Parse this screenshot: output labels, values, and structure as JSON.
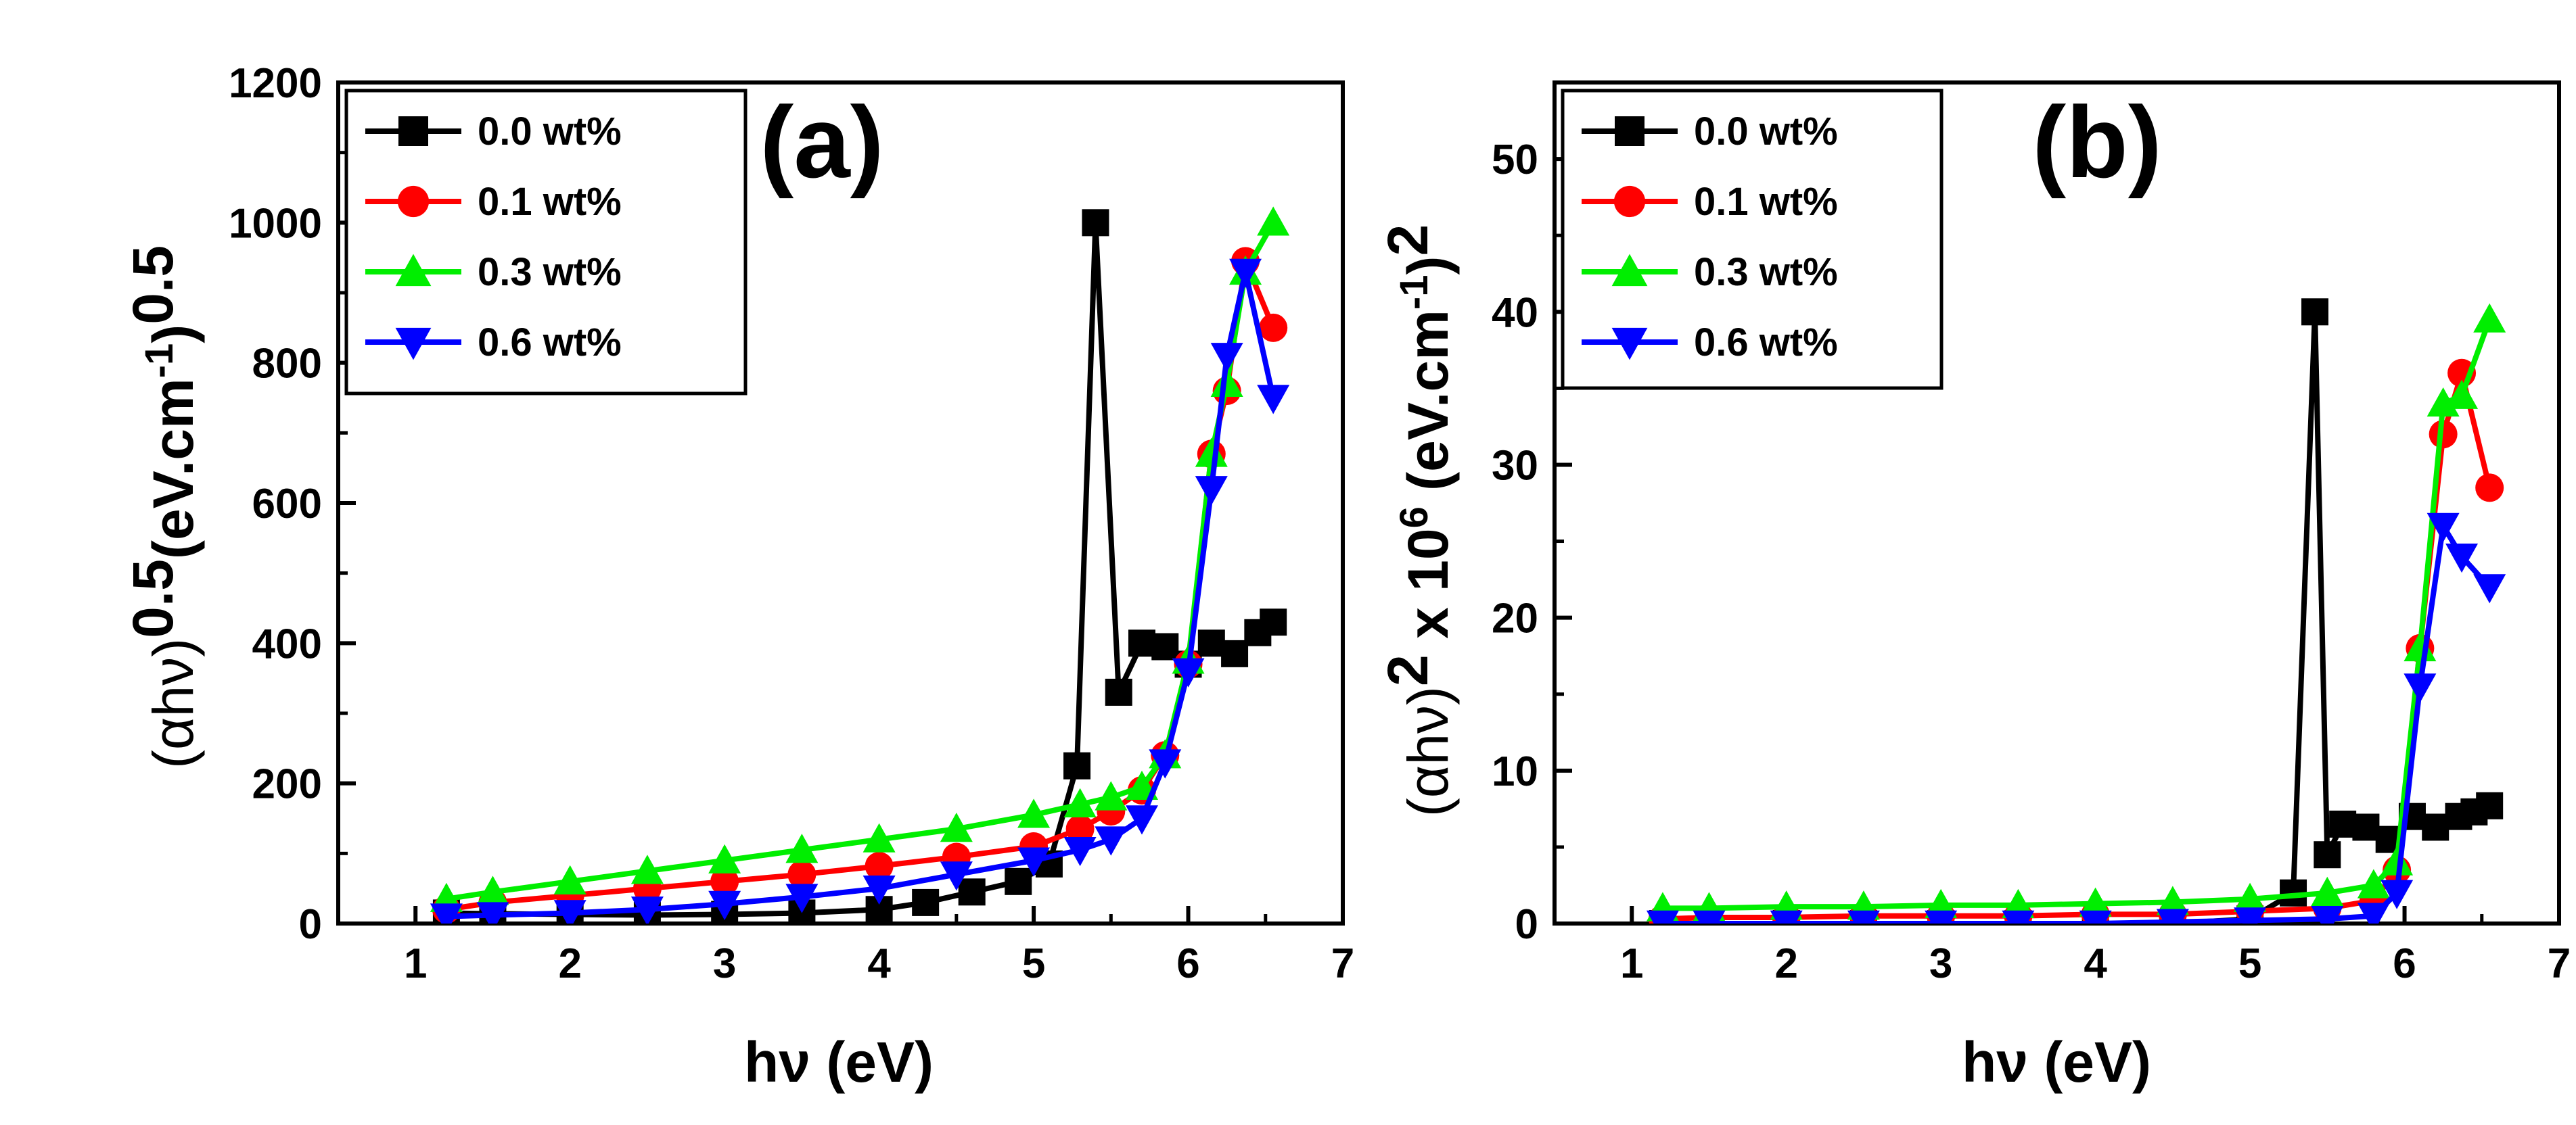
{
  "colors": {
    "series_0_0": "#000000",
    "series_0_1": "#ff0000",
    "series_0_3": "#00ee00",
    "series_0_6": "#0000ff"
  },
  "chart_data": [
    {
      "panel": "(a)",
      "type": "line",
      "xlabel": "hν (eV)",
      "ylabel_parts": {
        "base": "(αhν)",
        "exp1": "0.5",
        "unit": "(eV.cm",
        "exp2": "-1",
        "close": ")",
        "exp3": "0.5"
      },
      "xlim": [
        0.5,
        7
      ],
      "ylim": [
        0,
        1200
      ],
      "xticks": [
        1,
        2,
        3,
        4,
        5,
        6,
        7
      ],
      "yticks": [
        0,
        200,
        400,
        600,
        800,
        1000,
        1200
      ],
      "legend_position": "top-left",
      "series": [
        {
          "name": "0.0 wt%",
          "color": "#000000",
          "marker": "square",
          "x": [
            1.2,
            1.5,
            2.0,
            2.5,
            3.0,
            3.5,
            4.0,
            4.3,
            4.6,
            4.9,
            5.1,
            5.28,
            5.4,
            5.55,
            5.7,
            5.85,
            6.0,
            6.15,
            6.3,
            6.45,
            6.55
          ],
          "y": [
            15,
            14,
            13,
            12,
            13,
            15,
            20,
            30,
            45,
            60,
            85,
            225,
            1000,
            330,
            400,
            395,
            370,
            400,
            385,
            415,
            430
          ]
        },
        {
          "name": "0.1 wt%",
          "color": "#ff0000",
          "marker": "circle",
          "x": [
            1.2,
            1.5,
            2.0,
            2.5,
            3.0,
            3.5,
            4.0,
            4.5,
            5.0,
            5.3,
            5.5,
            5.7,
            5.85,
            6.0,
            6.15,
            6.25,
            6.37,
            6.55
          ],
          "y": [
            20,
            30,
            40,
            50,
            60,
            70,
            82,
            95,
            110,
            135,
            160,
            190,
            240,
            370,
            670,
            760,
            945,
            850
          ]
        },
        {
          "name": "0.3 wt%",
          "color": "#00ee00",
          "marker": "triangle-up",
          "x": [
            1.2,
            1.5,
            2.0,
            2.5,
            3.0,
            3.5,
            4.0,
            4.5,
            5.0,
            5.3,
            5.5,
            5.7,
            5.85,
            6.0,
            6.15,
            6.25,
            6.37,
            6.55
          ],
          "y": [
            35,
            45,
            60,
            75,
            90,
            105,
            120,
            135,
            155,
            170,
            180,
            195,
            240,
            375,
            670,
            770,
            930,
            1000
          ]
        },
        {
          "name": "0.6 wt%",
          "color": "#0000ff",
          "marker": "triangle-down",
          "x": [
            1.2,
            1.5,
            2.0,
            2.5,
            3.0,
            3.5,
            4.0,
            4.5,
            5.0,
            5.3,
            5.5,
            5.7,
            5.85,
            6.0,
            6.15,
            6.25,
            6.37,
            6.55
          ],
          "y": [
            10,
            12,
            15,
            20,
            28,
            38,
            50,
            70,
            90,
            105,
            120,
            150,
            230,
            360,
            620,
            810,
            930,
            750
          ]
        }
      ]
    },
    {
      "panel": "(b)",
      "type": "line",
      "xlabel": "hν (eV)",
      "ylabel_parts": {
        "base": "(αhν)",
        "exp1": "2",
        "mid": " x 10",
        "exp_mid": "6",
        "unit": " (eV.cm",
        "exp2": "-1",
        "close": ")",
        "exp3": "2"
      },
      "xlim": [
        0.5,
        7
      ],
      "ylim": [
        0,
        55
      ],
      "xticks": [
        1,
        2,
        3,
        4,
        5,
        6,
        7
      ],
      "yticks": [
        0,
        10,
        20,
        30,
        40,
        50
      ],
      "legend_position": "top-left",
      "series": [
        {
          "name": "0.0 wt%",
          "color": "#000000",
          "marker": "square",
          "x": [
            1.2,
            1.5,
            2.0,
            2.5,
            3.0,
            3.5,
            4.0,
            4.5,
            5.0,
            5.28,
            5.42,
            5.5,
            5.6,
            5.75,
            5.9,
            6.05,
            6.2,
            6.35,
            6.45,
            6.55
          ],
          "y": [
            0,
            0,
            0,
            0,
            0,
            0,
            0,
            0,
            0.3,
            2.0,
            40,
            4.5,
            6.5,
            6.3,
            5.5,
            7.0,
            6.3,
            7.0,
            7.3,
            7.7
          ]
        },
        {
          "name": "0.1 wt%",
          "color": "#ff0000",
          "marker": "circle",
          "x": [
            1.2,
            1.5,
            2.0,
            2.5,
            3.0,
            3.5,
            4.0,
            4.5,
            5.0,
            5.5,
            5.8,
            5.95,
            6.1,
            6.25,
            6.37,
            6.55
          ],
          "y": [
            0.3,
            0.4,
            0.4,
            0.5,
            0.5,
            0.5,
            0.6,
            0.6,
            0.8,
            1.0,
            1.5,
            3.5,
            18,
            32,
            36,
            28.5
          ]
        },
        {
          "name": "0.3 wt%",
          "color": "#00ee00",
          "marker": "triangle-up",
          "x": [
            1.2,
            1.5,
            2.0,
            2.5,
            3.0,
            3.5,
            4.0,
            4.5,
            5.0,
            5.5,
            5.8,
            5.95,
            6.1,
            6.25,
            6.37,
            6.55
          ],
          "y": [
            1.0,
            1.0,
            1.1,
            1.1,
            1.2,
            1.2,
            1.3,
            1.4,
            1.6,
            2.0,
            2.5,
            4.0,
            18,
            34,
            34.5,
            39.5
          ]
        },
        {
          "name": "0.6 wt%",
          "color": "#0000ff",
          "marker": "triangle-down",
          "x": [
            1.2,
            1.5,
            2.0,
            2.5,
            3.0,
            3.5,
            4.0,
            4.5,
            5.0,
            5.5,
            5.8,
            5.95,
            6.1,
            6.25,
            6.37,
            6.55
          ],
          "y": [
            0,
            0,
            0,
            0,
            0,
            0,
            0,
            0.1,
            0.2,
            0.3,
            0.5,
            2.0,
            15.5,
            26,
            24,
            22
          ]
        }
      ]
    }
  ]
}
